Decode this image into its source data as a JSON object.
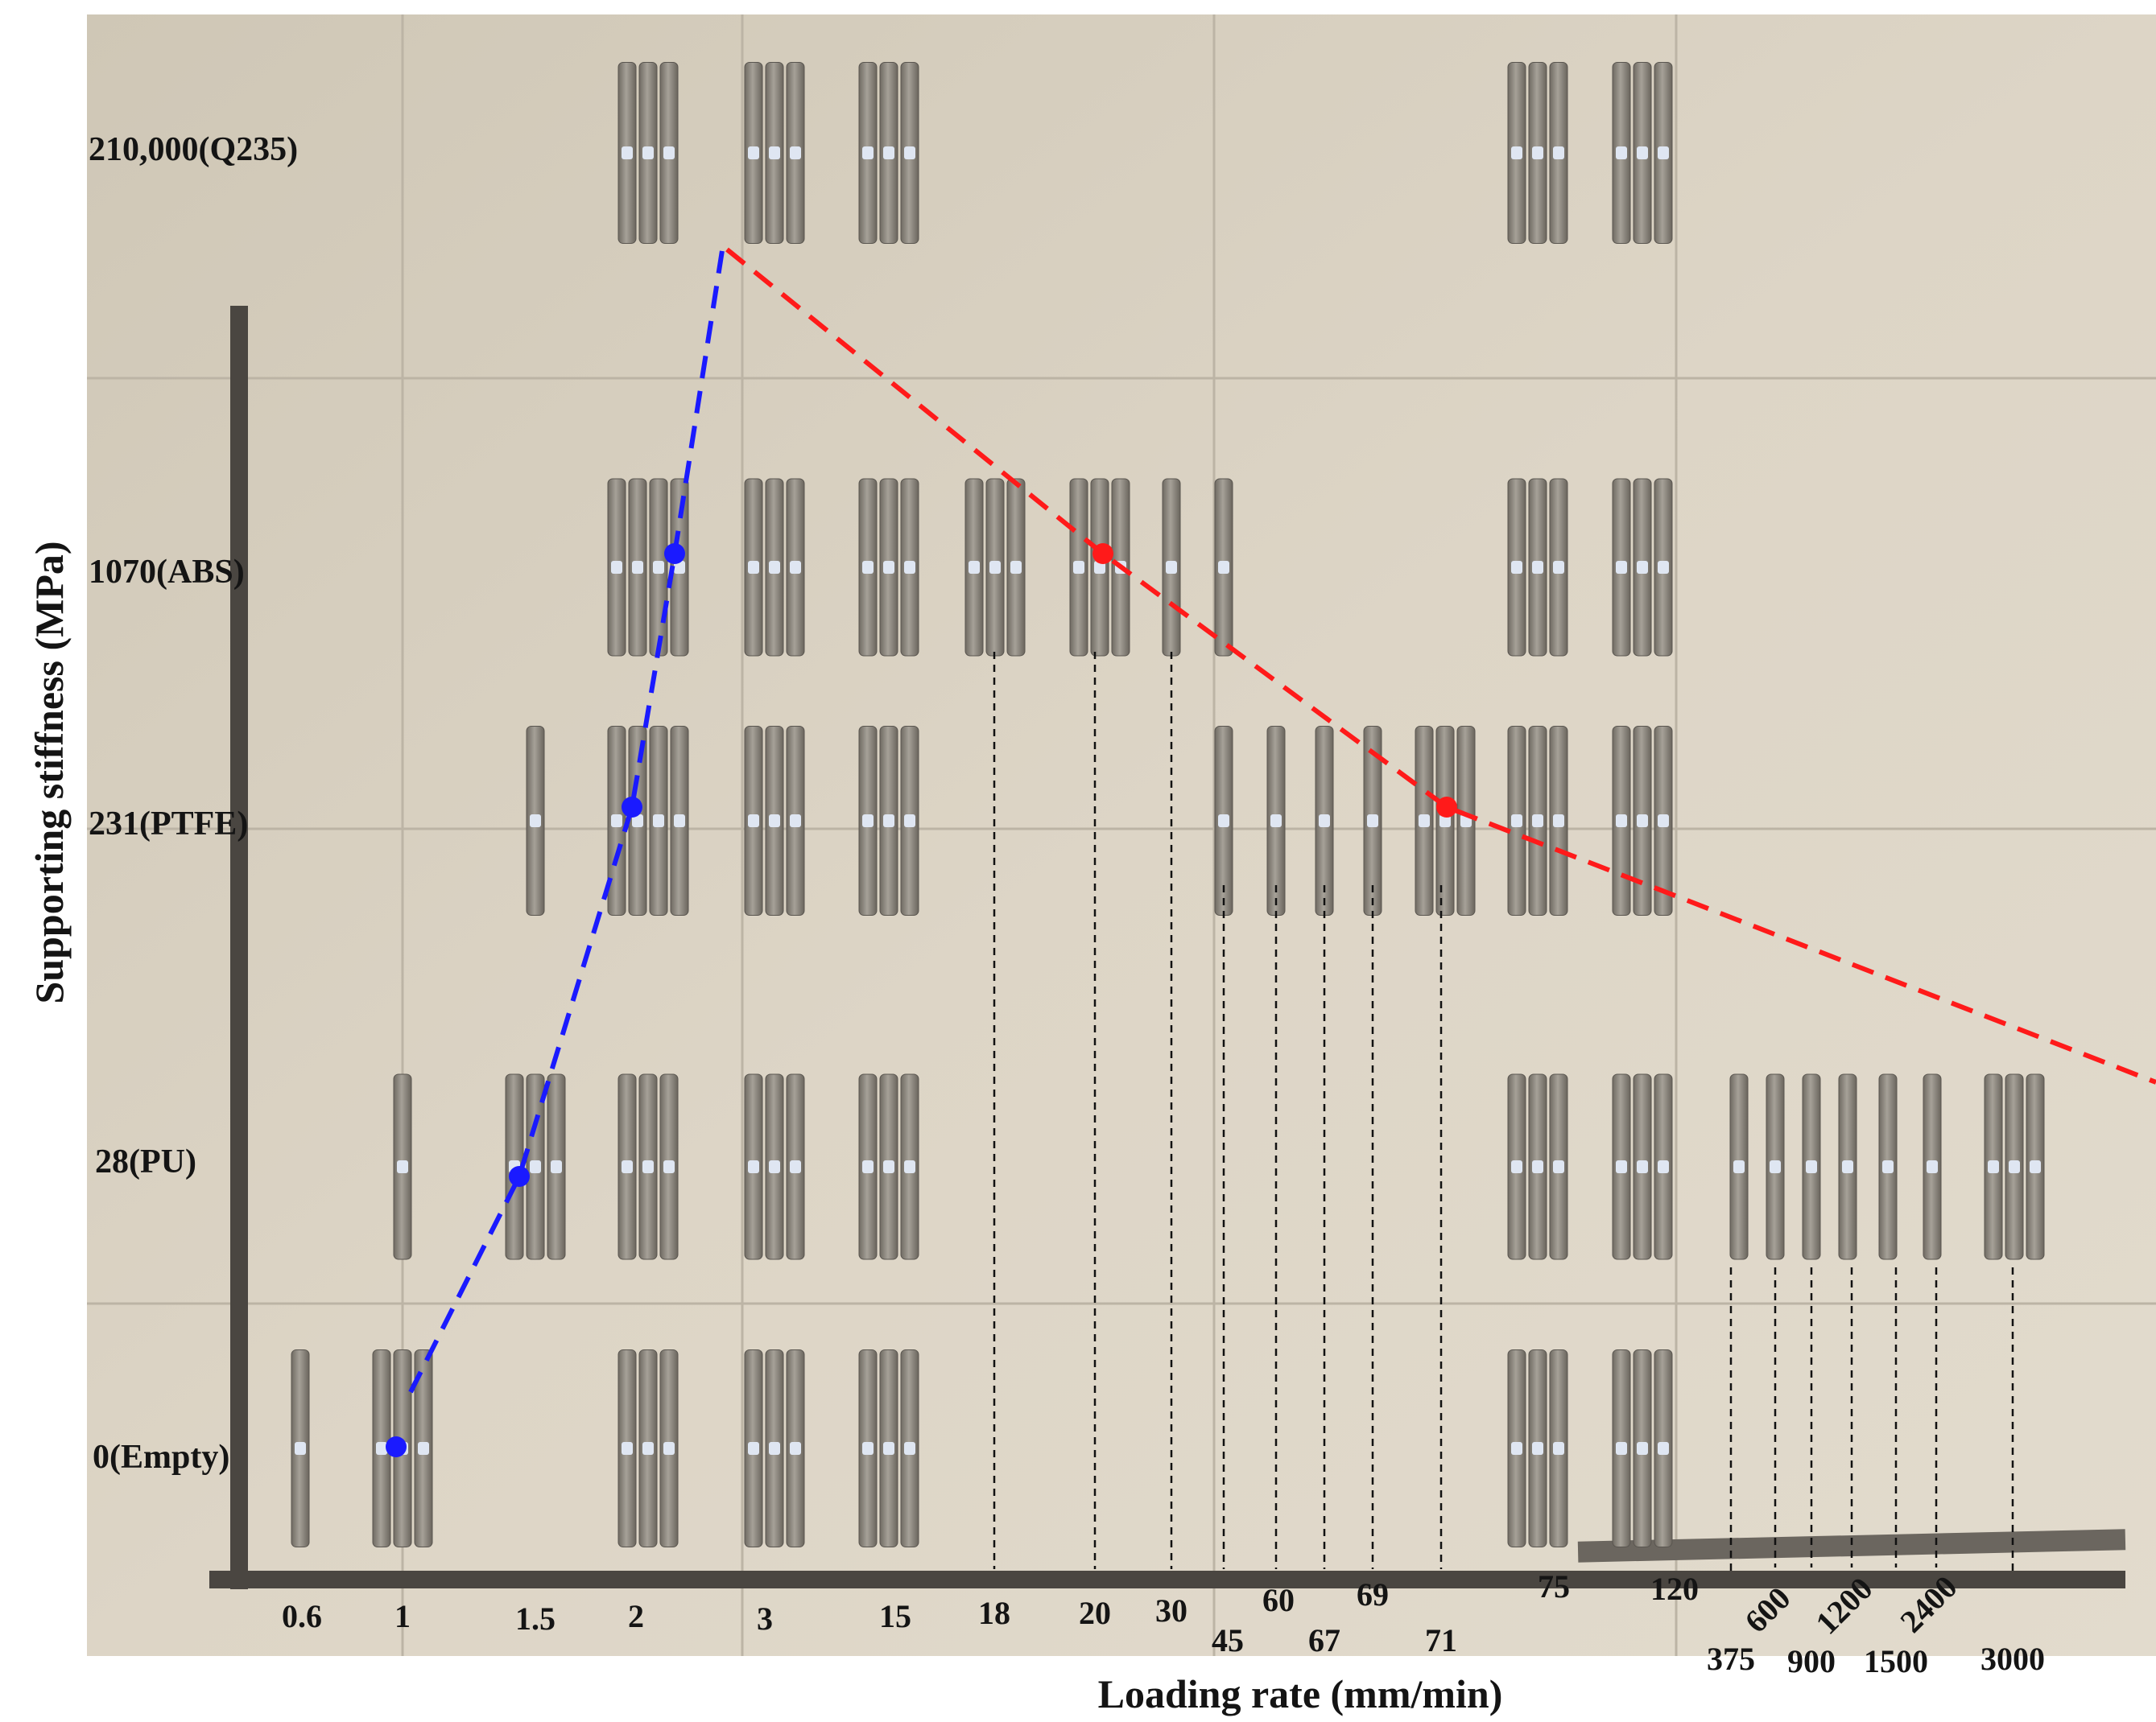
{
  "chart_data": {
    "type": "scatter",
    "xlabel": "Loading rate  (mm/min)",
    "ylabel": "Supporting stiffness  (MPa)",
    "x_ticks": [
      "0.6",
      "1",
      "1.5",
      "2",
      "3",
      "15",
      "18",
      "20",
      "30",
      "45",
      "60",
      "67",
      "69",
      "71",
      "75",
      "120",
      "375",
      "600",
      "900",
      "1200",
      "1500",
      "2400",
      "3000"
    ],
    "y_ticks": [
      "0(Empty)",
      "28(PU)",
      "231(PTFE)",
      "1070(ABS)",
      "210,000(Q235)"
    ],
    "specimen_groups": [
      {
        "y": "210,000(Q235)",
        "x": "2",
        "count": 3
      },
      {
        "y": "210,000(Q235)",
        "x": "3",
        "count": 3
      },
      {
        "y": "210,000(Q235)",
        "x": "15",
        "count": 3
      },
      {
        "y": "210,000(Q235)",
        "x": "75",
        "count": 3
      },
      {
        "y": "210,000(Q235)",
        "x": "120",
        "count": 3
      },
      {
        "y": "1070(ABS)",
        "x": "2",
        "count": 4
      },
      {
        "y": "1070(ABS)",
        "x": "3",
        "count": 3
      },
      {
        "y": "1070(ABS)",
        "x": "15",
        "count": 3
      },
      {
        "y": "1070(ABS)",
        "x": "18",
        "count": 3
      },
      {
        "y": "1070(ABS)",
        "x": "20",
        "count": 3
      },
      {
        "y": "1070(ABS)",
        "x": "30",
        "count": 1
      },
      {
        "y": "1070(ABS)",
        "x": "45",
        "count": 1
      },
      {
        "y": "1070(ABS)",
        "x": "75",
        "count": 3
      },
      {
        "y": "1070(ABS)",
        "x": "120",
        "count": 3
      },
      {
        "y": "231(PTFE)",
        "x": "1.5",
        "count": 1
      },
      {
        "y": "231(PTFE)",
        "x": "2",
        "count": 4
      },
      {
        "y": "231(PTFE)",
        "x": "3",
        "count": 3
      },
      {
        "y": "231(PTFE)",
        "x": "15",
        "count": 3
      },
      {
        "y": "231(PTFE)",
        "x": "45",
        "count": 1
      },
      {
        "y": "231(PTFE)",
        "x": "60",
        "count": 1
      },
      {
        "y": "231(PTFE)",
        "x": "67",
        "count": 1
      },
      {
        "y": "231(PTFE)",
        "x": "69",
        "count": 1
      },
      {
        "y": "231(PTFE)",
        "x": "71",
        "count": 3
      },
      {
        "y": "231(PTFE)",
        "x": "75",
        "count": 3
      },
      {
        "y": "231(PTFE)",
        "x": "120",
        "count": 3
      },
      {
        "y": "28(PU)",
        "x": "1",
        "count": 1
      },
      {
        "y": "28(PU)",
        "x": "1.5",
        "count": 3
      },
      {
        "y": "28(PU)",
        "x": "2",
        "count": 3
      },
      {
        "y": "28(PU)",
        "x": "3",
        "count": 3
      },
      {
        "y": "28(PU)",
        "x": "15",
        "count": 3
      },
      {
        "y": "28(PU)",
        "x": "75",
        "count": 3
      },
      {
        "y": "28(PU)",
        "x": "120",
        "count": 3
      },
      {
        "y": "28(PU)",
        "x": "375",
        "count": 1
      },
      {
        "y": "28(PU)",
        "x": "600",
        "count": 1
      },
      {
        "y": "28(PU)",
        "x": "900",
        "count": 1
      },
      {
        "y": "28(PU)",
        "x": "1200",
        "count": 1
      },
      {
        "y": "28(PU)",
        "x": "1500",
        "count": 1
      },
      {
        "y": "28(PU)",
        "x": "2400",
        "count": 1
      },
      {
        "y": "28(PU)",
        "x": "3000",
        "count": 3
      },
      {
        "y": "0(Empty)",
        "x": "0.6",
        "count": 1
      },
      {
        "y": "0(Empty)",
        "x": "1",
        "count": 3
      },
      {
        "y": "0(Empty)",
        "x": "2",
        "count": 3
      },
      {
        "y": "0(Empty)",
        "x": "3",
        "count": 3
      },
      {
        "y": "0(Empty)",
        "x": "15",
        "count": 3
      },
      {
        "y": "0(Empty)",
        "x": "75",
        "count": 3
      },
      {
        "y": "0(Empty)",
        "x": "120",
        "count": 3
      }
    ],
    "series": [
      {
        "color": "#1a1aff",
        "style": "dashed",
        "points": [
          {
            "x": "1",
            "y": "0(Empty)"
          },
          {
            "x": "1.5",
            "y": "28(PU)"
          },
          {
            "x": "2",
            "y": "231(PTFE)"
          },
          {
            "x": "2",
            "y": "1070(ABS)"
          }
        ]
      },
      {
        "color": "#ff1a1a",
        "style": "dashed",
        "points": [
          {
            "x": "20",
            "y": "1070(ABS)"
          },
          {
            "x": "71",
            "y": "231(PTFE)"
          }
        ]
      }
    ],
    "guide_line_x": [
      "18",
      "20",
      "30",
      "45",
      "60",
      "67",
      "69",
      "71",
      "375",
      "600",
      "900",
      "1200",
      "1500",
      "2400",
      "3000"
    ],
    "background": "photo of tensile specimens on floor tiles",
    "tile_color": "#d8d0c1",
    "specimen_color": "#8b867e"
  }
}
